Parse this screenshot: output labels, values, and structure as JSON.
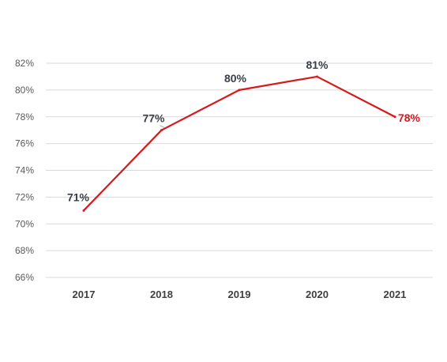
{
  "chart_data": {
    "type": "line",
    "categories": [
      "2017",
      "2018",
      "2019",
      "2020",
      "2021"
    ],
    "series": [
      {
        "values": [
          71,
          77,
          80,
          81,
          78
        ]
      }
    ],
    "data_labels": [
      "71%",
      "77%",
      "80%",
      "81%",
      "78%"
    ],
    "ylim": [
      66,
      82
    ],
    "y_ticks": [
      "66%",
      "68%",
      "70%",
      "72%",
      "74%",
      "76%",
      "78%",
      "80%",
      "82%"
    ],
    "grid": true,
    "legend": "none",
    "line_color": "#d7191c",
    "highlight_last_label_color": "#d7191c",
    "label_color": "#3a3f4b"
  }
}
